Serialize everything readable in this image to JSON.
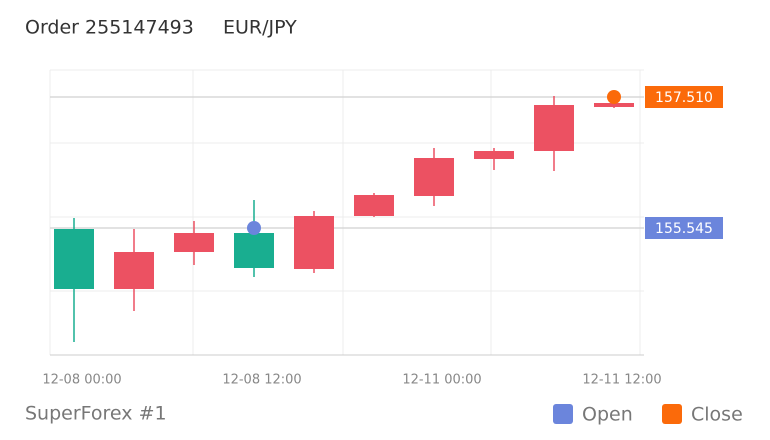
{
  "chart_data": {
    "type": "candlestick",
    "title": "Order 255147493",
    "symbol": "EUR/JPY",
    "footer": "SuperForex #1",
    "categories": [
      "12-08 00:00",
      null,
      null,
      "12-08 12:00",
      null,
      null,
      "12-11 00:00",
      null,
      null,
      "12-11 12:00"
    ],
    "open": [
      155.53,
      154.63,
      155.185,
      155.47,
      154.93,
      155.725,
      156.025,
      156.58,
      156.7,
      157.36
    ],
    "high": [
      155.695,
      155.53,
      155.65,
      155.965,
      155.8,
      156.07,
      156.745,
      156.745,
      157.525,
      157.525
    ],
    "low": [
      153.835,
      154.3,
      154.99,
      154.81,
      154.87,
      155.71,
      155.875,
      156.415,
      156.4,
      157.345
    ],
    "close": [
      154.63,
      155.185,
      155.47,
      154.945,
      155.725,
      156.04,
      156.595,
      156.7,
      157.39,
      157.42
    ],
    "up_color": "#ec5162",
    "down_color": "#19ae90",
    "ylim": [
      153.64,
      157.915
    ],
    "markers": [
      {
        "name": "Open",
        "color": "#6b85dc",
        "x": "12-08 12:00",
        "value": 155.545
      },
      {
        "name": "Close",
        "color": "#fb6a0a",
        "x": "12-11 12:00",
        "value": 157.51,
        "value_label": "157.510"
      }
    ]
  }
}
